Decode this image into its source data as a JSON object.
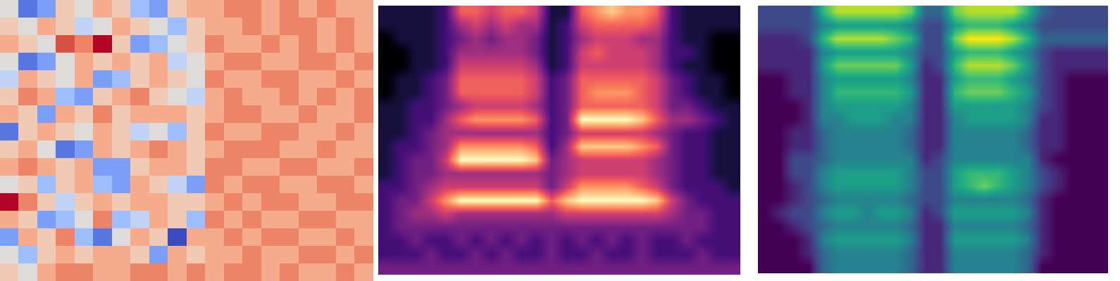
{
  "chart_data": [
    {
      "type": "heatmap",
      "color": "coolwarm",
      "tick_labels": false,
      "cells": [
        [
          0,
          -4,
          -3,
          1,
          0,
          2,
          1,
          -2,
          -3,
          1,
          2,
          2,
          3,
          3,
          2,
          3,
          2,
          3,
          2,
          2
        ],
        [
          1,
          0,
          2,
          1,
          -1,
          0,
          2,
          1,
          0,
          -2,
          1,
          2,
          2,
          3,
          2,
          3,
          3,
          2,
          3,
          2
        ],
        [
          2,
          1,
          0,
          4,
          3,
          5,
          1,
          -3,
          -2,
          0,
          1,
          3,
          2,
          2,
          3,
          2,
          3,
          2,
          3,
          2
        ],
        [
          0,
          -4,
          -3,
          0,
          2,
          1,
          2,
          1,
          2,
          -1,
          0,
          2,
          3,
          3,
          2,
          2,
          3,
          3,
          2,
          3
        ],
        [
          -1,
          2,
          1,
          0,
          2,
          -3,
          -2,
          1,
          2,
          1,
          0,
          3,
          2,
          2,
          3,
          3,
          2,
          2,
          3,
          2
        ],
        [
          1,
          3,
          2,
          -2,
          -3,
          1,
          2,
          3,
          1,
          0,
          -1,
          2,
          3,
          2,
          2,
          3,
          2,
          3,
          2,
          3
        ],
        [
          2,
          1,
          -3,
          2,
          1,
          3,
          1,
          2,
          2,
          2,
          1,
          2,
          3,
          3,
          2,
          2,
          3,
          2,
          2,
          3
        ],
        [
          -4,
          1,
          2,
          1,
          0,
          2,
          1,
          -1,
          0,
          -2,
          1,
          3,
          2,
          2,
          3,
          3,
          2,
          2,
          3,
          2
        ],
        [
          1,
          2,
          0,
          -4,
          -3,
          2,
          1,
          2,
          3,
          2,
          1,
          2,
          3,
          3,
          3,
          2,
          2,
          3,
          2,
          2
        ],
        [
          2,
          3,
          2,
          1,
          2,
          -3,
          -3,
          1,
          2,
          2,
          1,
          3,
          3,
          2,
          2,
          3,
          3,
          2,
          2,
          3
        ],
        [
          0,
          1,
          -2,
          1,
          2,
          -2,
          -3,
          2,
          1,
          -1,
          -3,
          3,
          2,
          3,
          3,
          2,
          2,
          3,
          3,
          2
        ],
        [
          5,
          3,
          1,
          -1,
          1,
          2,
          1,
          2,
          2,
          1,
          1,
          2,
          3,
          2,
          3,
          3,
          2,
          2,
          3,
          3
        ],
        [
          2,
          1,
          -3,
          -2,
          0,
          3,
          -2,
          -1,
          2,
          1,
          -2,
          3,
          2,
          3,
          2,
          2,
          3,
          3,
          2,
          2
        ],
        [
          -3,
          2,
          1,
          3,
          -2,
          -4,
          0,
          2,
          1,
          -5,
          2,
          2,
          3,
          2,
          3,
          3,
          2,
          2,
          3,
          2
        ],
        [
          0,
          -2,
          1,
          2,
          1,
          2,
          2,
          1,
          -3,
          2,
          1,
          2,
          2,
          3,
          2,
          2,
          3,
          3,
          2,
          3
        ],
        [
          1,
          0,
          2,
          3,
          3,
          2,
          2,
          3,
          3,
          2,
          3,
          2,
          3,
          3,
          2,
          3,
          2,
          2,
          3,
          2
        ]
      ]
    },
    {
      "type": "heatmap",
      "color": "magma",
      "tick_labels": false,
      "cells": [
        [
          1,
          1,
          1,
          1,
          2,
          6,
          6,
          5,
          6,
          6,
          5,
          1,
          1,
          6,
          7,
          8,
          7,
          7,
          6,
          2,
          1,
          1,
          1,
          1
        ],
        [
          1,
          1,
          1,
          1,
          2,
          4,
          5,
          4,
          5,
          4,
          4,
          1,
          2,
          5,
          6,
          6,
          6,
          6,
          5,
          2,
          1,
          1,
          1,
          1
        ],
        [
          0,
          1,
          1,
          1,
          2,
          3,
          4,
          3,
          4,
          4,
          3,
          1,
          2,
          4,
          5,
          5,
          5,
          4,
          4,
          2,
          1,
          1,
          0,
          0
        ],
        [
          0,
          0,
          1,
          1,
          2,
          4,
          4,
          4,
          4,
          4,
          3,
          1,
          2,
          5,
          6,
          5,
          5,
          5,
          4,
          2,
          2,
          1,
          0,
          0
        ],
        [
          0,
          0,
          1,
          1,
          2,
          5,
          5,
          5,
          5,
          5,
          4,
          1,
          2,
          5,
          5,
          5,
          5,
          5,
          4,
          2,
          1,
          1,
          0,
          0
        ],
        [
          0,
          1,
          1,
          2,
          3,
          6,
          6,
          6,
          6,
          6,
          5,
          2,
          3,
          6,
          6,
          6,
          6,
          6,
          5,
          3,
          2,
          1,
          1,
          0
        ],
        [
          0,
          1,
          1,
          2,
          3,
          6,
          6,
          6,
          6,
          6,
          5,
          2,
          3,
          6,
          7,
          7,
          7,
          6,
          5,
          3,
          2,
          1,
          1,
          0
        ],
        [
          1,
          1,
          2,
          2,
          3,
          4,
          5,
          5,
          5,
          5,
          4,
          2,
          3,
          6,
          6,
          6,
          6,
          6,
          5,
          3,
          3,
          2,
          1,
          1
        ],
        [
          1,
          1,
          2,
          2,
          4,
          6,
          7,
          7,
          7,
          7,
          6,
          2,
          3,
          9,
          9,
          9,
          9,
          8,
          6,
          4,
          4,
          3,
          2,
          1
        ],
        [
          1,
          1,
          2,
          3,
          4,
          4,
          4,
          4,
          4,
          4,
          4,
          2,
          3,
          5,
          5,
          5,
          5,
          5,
          4,
          3,
          2,
          2,
          1,
          1
        ],
        [
          1,
          2,
          2,
          3,
          4,
          7,
          7,
          7,
          7,
          7,
          6,
          2,
          4,
          8,
          8,
          8,
          8,
          7,
          6,
          3,
          2,
          2,
          1,
          1
        ],
        [
          1,
          2,
          3,
          3,
          5,
          9,
          9,
          9,
          9,
          9,
          8,
          3,
          4,
          5,
          5,
          5,
          5,
          5,
          4,
          3,
          2,
          2,
          1,
          1
        ],
        [
          1,
          2,
          3,
          3,
          4,
          4,
          4,
          4,
          4,
          4,
          4,
          3,
          4,
          5,
          5,
          5,
          5,
          5,
          4,
          3,
          2,
          2,
          1,
          1
        ],
        [
          2,
          2,
          3,
          4,
          5,
          5,
          5,
          5,
          5,
          5,
          5,
          3,
          5,
          7,
          7,
          7,
          7,
          6,
          5,
          3,
          2,
          2,
          2,
          1
        ],
        [
          2,
          3,
          3,
          5,
          7,
          9,
          9,
          9,
          9,
          9,
          9,
          6,
          8,
          9,
          9,
          9,
          9,
          9,
          8,
          5,
          3,
          2,
          2,
          2
        ],
        [
          2,
          3,
          4,
          4,
          5,
          4,
          4,
          4,
          4,
          4,
          4,
          4,
          5,
          5,
          5,
          5,
          5,
          5,
          5,
          4,
          3,
          3,
          2,
          2
        ],
        [
          2,
          3,
          3,
          3,
          3,
          3,
          3,
          3,
          3,
          3,
          3,
          3,
          3,
          3,
          3,
          3,
          3,
          3,
          3,
          3,
          3,
          3,
          2,
          2
        ],
        [
          2,
          2,
          3,
          2,
          2,
          3,
          2,
          3,
          2,
          3,
          2,
          3,
          2,
          3,
          2,
          3,
          2,
          3,
          2,
          2,
          3,
          2,
          2,
          2
        ],
        [
          2,
          2,
          2,
          3,
          2,
          2,
          3,
          2,
          3,
          2,
          2,
          3,
          2,
          2,
          3,
          2,
          2,
          3,
          2,
          2,
          2,
          3,
          2,
          2
        ],
        [
          3,
          3,
          3,
          3,
          3,
          3,
          3,
          3,
          3,
          3,
          3,
          3,
          3,
          3,
          3,
          3,
          3,
          3,
          3,
          3,
          3,
          3,
          3,
          3
        ]
      ]
    },
    {
      "type": "heatmap",
      "color": "viridis",
      "tick_labels": false,
      "cells": [
        [
          2,
          2,
          2,
          2,
          6,
          8,
          8,
          8,
          8,
          8,
          7,
          3,
          3,
          7,
          8,
          8,
          8,
          8,
          6,
          3,
          2,
          2,
          2,
          2
        ],
        [
          2,
          2,
          2,
          2,
          4,
          5,
          5,
          5,
          5,
          5,
          4,
          2,
          2,
          5,
          6,
          6,
          6,
          5,
          4,
          2,
          2,
          2,
          2,
          2
        ],
        [
          1,
          1,
          1,
          2,
          6,
          8,
          8,
          8,
          8,
          7,
          6,
          2,
          2,
          7,
          9,
          9,
          9,
          8,
          6,
          3,
          3,
          3,
          3,
          3
        ],
        [
          1,
          1,
          1,
          1,
          4,
          5,
          5,
          5,
          5,
          5,
          4,
          2,
          2,
          5,
          6,
          6,
          6,
          5,
          4,
          2,
          1,
          1,
          1,
          1
        ],
        [
          1,
          1,
          1,
          1,
          5,
          7,
          7,
          7,
          7,
          7,
          5,
          1,
          2,
          6,
          8,
          8,
          8,
          7,
          5,
          2,
          1,
          1,
          1,
          1
        ],
        [
          0,
          0,
          1,
          1,
          4,
          5,
          5,
          5,
          5,
          5,
          4,
          1,
          1,
          5,
          6,
          6,
          6,
          5,
          4,
          2,
          1,
          0,
          0,
          0
        ],
        [
          0,
          0,
          1,
          1,
          4,
          6,
          6,
          6,
          6,
          6,
          5,
          1,
          1,
          6,
          7,
          7,
          7,
          6,
          5,
          2,
          1,
          0,
          0,
          0
        ],
        [
          0,
          0,
          0,
          1,
          4,
          5,
          5,
          5,
          5,
          5,
          4,
          1,
          1,
          5,
          5,
          5,
          5,
          5,
          4,
          2,
          1,
          0,
          0,
          0
        ],
        [
          0,
          0,
          0,
          1,
          4,
          4,
          5,
          5,
          5,
          4,
          4,
          1,
          1,
          4,
          5,
          5,
          5,
          5,
          4,
          1,
          1,
          0,
          0,
          0
        ],
        [
          0,
          0,
          1,
          1,
          3,
          4,
          4,
          4,
          4,
          4,
          3,
          1,
          1,
          4,
          4,
          4,
          4,
          4,
          3,
          1,
          1,
          0,
          0,
          0
        ],
        [
          0,
          0,
          1,
          1,
          3,
          4,
          4,
          4,
          4,
          4,
          3,
          1,
          1,
          4,
          4,
          4,
          4,
          4,
          3,
          1,
          1,
          0,
          0,
          0
        ],
        [
          0,
          0,
          2,
          2,
          3,
          4,
          4,
          4,
          4,
          4,
          4,
          1,
          2,
          4,
          4,
          4,
          4,
          4,
          4,
          1,
          0,
          0,
          0,
          0
        ],
        [
          0,
          0,
          2,
          2,
          4,
          5,
          5,
          5,
          5,
          5,
          4,
          2,
          2,
          5,
          6,
          6,
          6,
          5,
          4,
          2,
          1,
          0,
          0,
          0
        ],
        [
          0,
          0,
          1,
          2,
          4,
          5,
          5,
          5,
          5,
          5,
          4,
          2,
          2,
          5,
          6,
          7,
          6,
          5,
          4,
          2,
          1,
          0,
          0,
          0
        ],
        [
          0,
          0,
          1,
          2,
          3,
          4,
          4,
          4,
          4,
          4,
          3,
          2,
          2,
          4,
          4,
          4,
          4,
          4,
          3,
          1,
          0,
          0,
          0,
          0
        ],
        [
          0,
          1,
          2,
          2,
          4,
          5,
          5,
          4,
          5,
          5,
          4,
          1,
          2,
          5,
          5,
          5,
          5,
          5,
          4,
          1,
          0,
          0,
          0,
          0
        ],
        [
          0,
          0,
          1,
          2,
          3,
          4,
          4,
          4,
          4,
          4,
          3,
          1,
          1,
          4,
          4,
          4,
          4,
          4,
          3,
          1,
          0,
          0,
          0,
          0
        ],
        [
          0,
          0,
          0,
          1,
          4,
          5,
          5,
          5,
          5,
          5,
          4,
          1,
          1,
          5,
          5,
          5,
          5,
          5,
          4,
          1,
          0,
          0,
          0,
          0
        ],
        [
          0,
          0,
          0,
          1,
          3,
          4,
          4,
          4,
          4,
          4,
          3,
          1,
          1,
          4,
          4,
          4,
          4,
          4,
          3,
          1,
          0,
          0,
          0,
          0
        ],
        [
          0,
          0,
          0,
          0,
          3,
          4,
          4,
          4,
          4,
          4,
          3,
          1,
          1,
          4,
          4,
          4,
          4,
          4,
          3,
          0,
          0,
          0,
          0,
          0
        ]
      ]
    }
  ]
}
